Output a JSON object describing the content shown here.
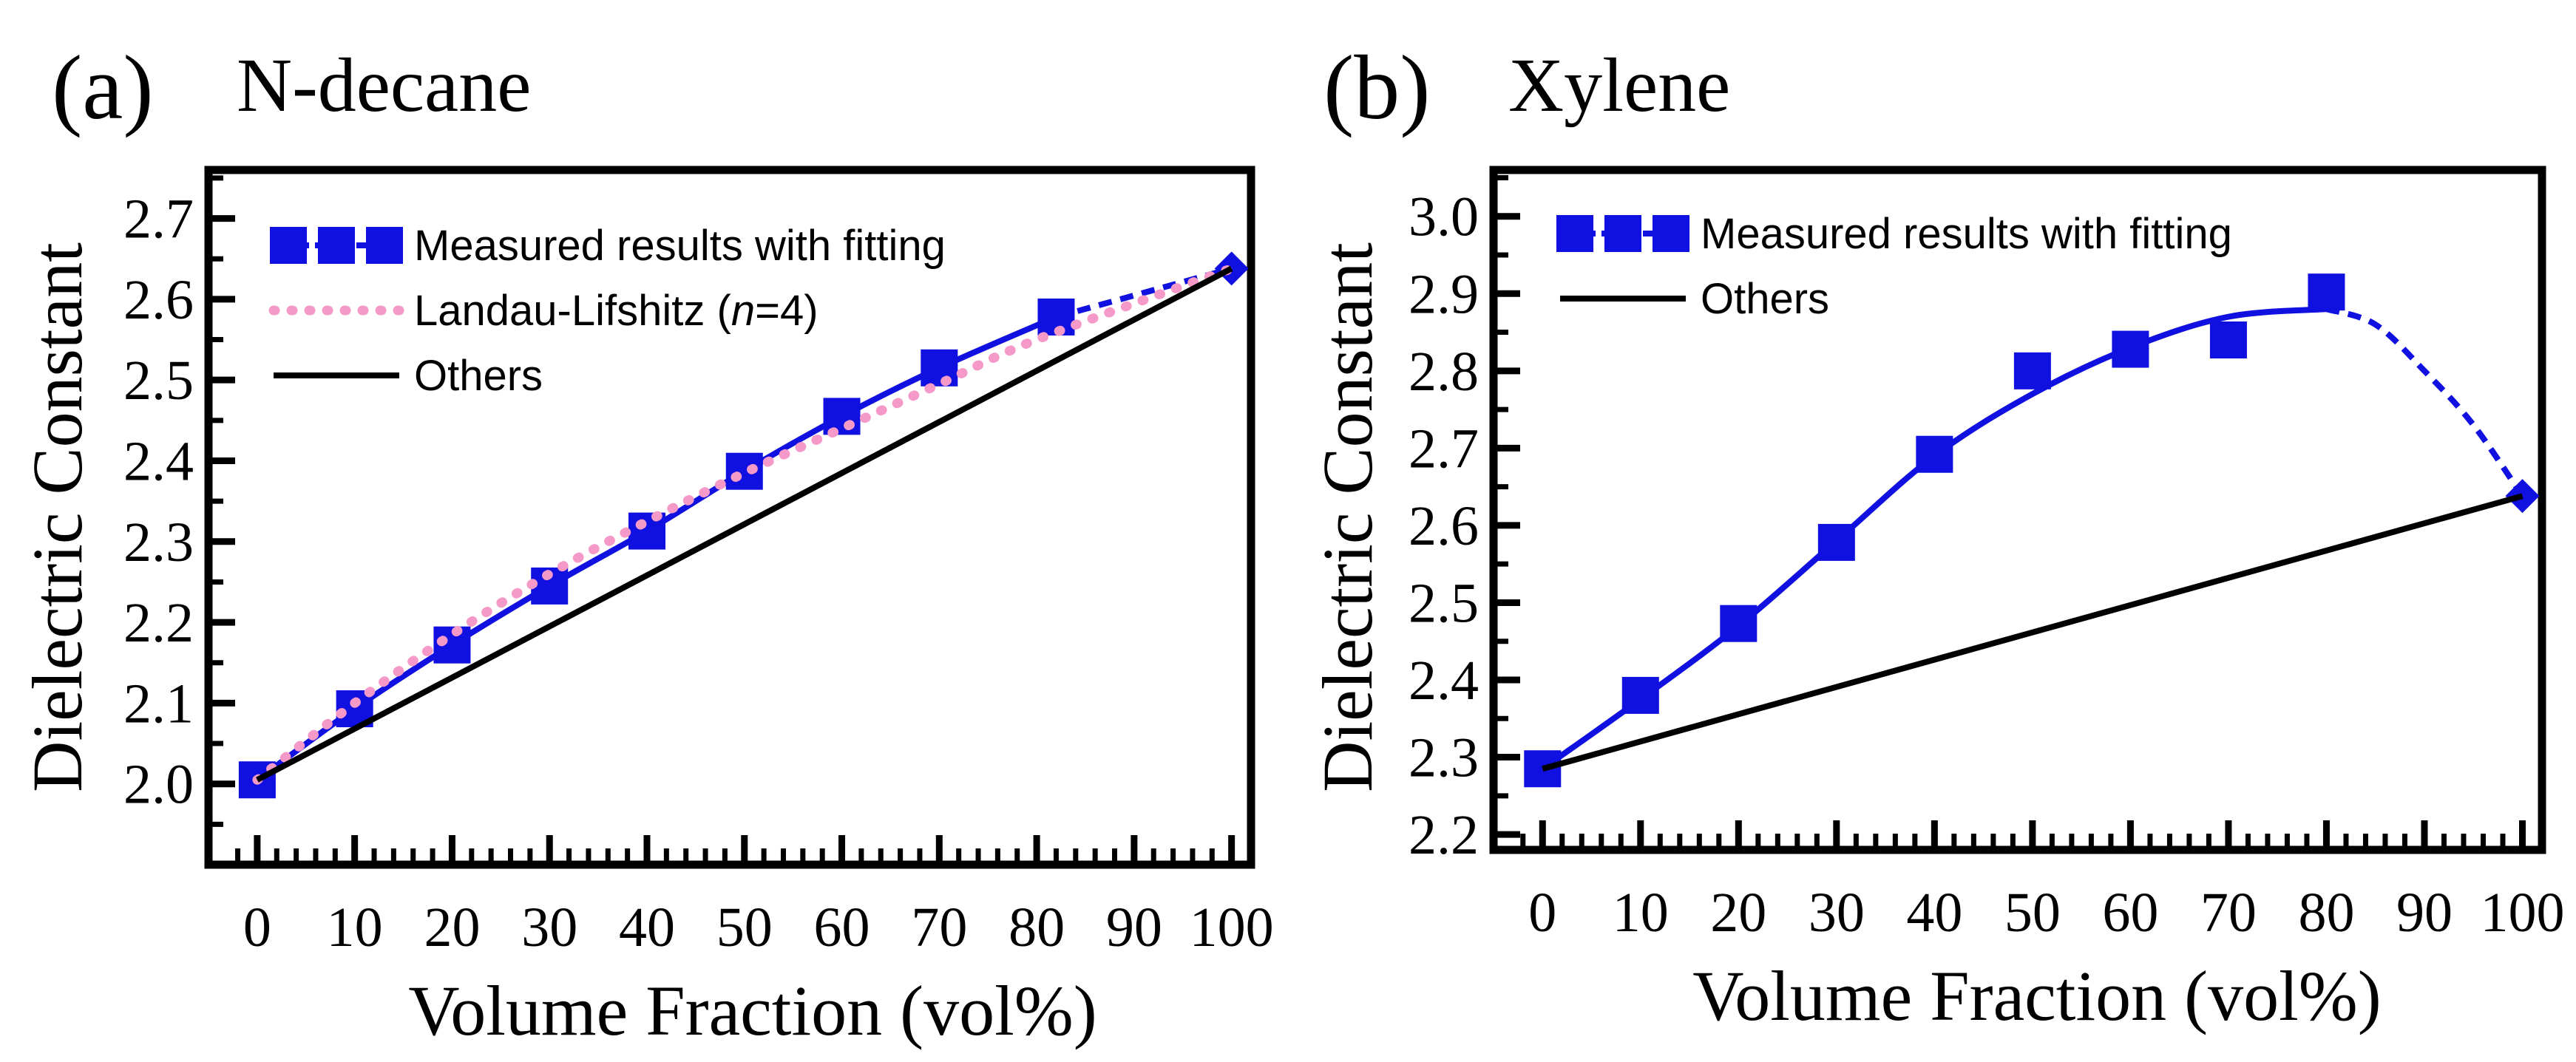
{
  "chart_data": [
    {
      "type": "line",
      "panel_label": "(a)",
      "title": "N-decane",
      "xlabel": "Volume Fraction (vol%)",
      "ylabel": "Dielectric Constant",
      "xlim": [
        -5,
        102
      ],
      "ylim": [
        1.9,
        2.76
      ],
      "xticks": [
        0,
        10,
        20,
        30,
        40,
        50,
        60,
        70,
        80,
        90,
        100
      ],
      "xtick_labels": [
        "0",
        "10",
        "20",
        "30",
        "40",
        "50",
        "60",
        "70",
        "80",
        "90",
        "100"
      ],
      "yticks": [
        2.0,
        2.1,
        2.2,
        2.3,
        2.4,
        2.5,
        2.6,
        2.7
      ],
      "ytick_labels": [
        "2.0",
        "2.1",
        "2.2",
        "2.3",
        "2.4",
        "2.5",
        "2.6",
        "2.7"
      ],
      "grid": false,
      "legend_position": "top-left",
      "legend": [
        {
          "key": "measured",
          "label": "Measured results with fitting"
        },
        {
          "key": "landau",
          "label_prefix": "Landau-Lifshitz (",
          "label_italic": "n",
          "label_suffix": "=4)"
        },
        {
          "key": "others",
          "label": "Others"
        }
      ],
      "series": [
        {
          "key": "measured",
          "style": "squares-solid",
          "color": "#1010e0",
          "x": [
            0,
            10,
            20,
            30,
            40,
            50,
            60,
            70,
            82
          ],
          "y": [
            2.005,
            2.093,
            2.172,
            2.245,
            2.313,
            2.387,
            2.455,
            2.515,
            2.578
          ]
        },
        {
          "key": "measured-extension",
          "style": "dashed",
          "color": "#1010e0",
          "x": [
            82,
            100
          ],
          "y": [
            2.578,
            2.638
          ]
        },
        {
          "key": "pure-endpoint",
          "style": "diamond",
          "color": "#1010e0",
          "x": [
            100
          ],
          "y": [
            2.638
          ]
        },
        {
          "key": "landau",
          "style": "dotted",
          "color": "#f59ac8",
          "x": [
            0,
            10,
            20,
            30,
            40,
            50,
            60,
            70,
            80,
            100
          ],
          "y": [
            2.005,
            2.1,
            2.185,
            2.26,
            2.325,
            2.385,
            2.44,
            2.495,
            2.55,
            2.638
          ]
        },
        {
          "key": "others",
          "style": "solid",
          "color": "#000000",
          "x": [
            0,
            100
          ],
          "y": [
            2.005,
            2.638
          ]
        }
      ]
    },
    {
      "type": "line",
      "panel_label": "(b)",
      "title": "Xylene",
      "xlabel": "Volume Fraction (vol%)",
      "ylabel": "Dielectric Constant",
      "xlim": [
        -5,
        102
      ],
      "ylim": [
        2.18,
        3.06
      ],
      "xticks": [
        0,
        10,
        20,
        30,
        40,
        50,
        60,
        70,
        80,
        90,
        100
      ],
      "xtick_labels": [
        "0",
        "10",
        "20",
        "30",
        "40",
        "50",
        "60",
        "70",
        "80",
        "90",
        "100"
      ],
      "yticks": [
        2.2,
        2.3,
        2.4,
        2.5,
        2.6,
        2.7,
        2.8,
        2.9,
        3.0
      ],
      "ytick_labels": [
        "2.2",
        "2.3",
        "2.4",
        "2.5",
        "2.6",
        "2.7",
        "2.8",
        "2.9",
        "3.0"
      ],
      "grid": false,
      "legend_position": "top-left",
      "legend": [
        {
          "key": "measured",
          "label": "Measured results with fitting"
        },
        {
          "key": "others",
          "label": "Others"
        }
      ],
      "series": [
        {
          "key": "measured-fit",
          "style": "solid",
          "color": "#1010e0",
          "x": [
            0,
            10,
            20,
            30,
            40,
            50,
            60,
            70,
            80
          ],
          "y": [
            2.285,
            2.375,
            2.47,
            2.58,
            2.69,
            2.77,
            2.83,
            2.87,
            2.88
          ]
        },
        {
          "key": "measured",
          "style": "squares",
          "color": "#1010e0",
          "x": [
            0,
            10,
            20,
            30,
            40,
            50,
            60,
            70,
            80
          ],
          "y": [
            2.285,
            2.38,
            2.473,
            2.578,
            2.692,
            2.8,
            2.828,
            2.84,
            2.902
          ]
        },
        {
          "key": "measured-extension",
          "style": "dashed",
          "color": "#1010e0",
          "x": [
            80,
            85,
            90,
            95,
            100
          ],
          "y": [
            2.88,
            2.86,
            2.8,
            2.73,
            2.638
          ]
        },
        {
          "key": "pure-endpoint",
          "style": "diamond",
          "color": "#1010e0",
          "x": [
            100
          ],
          "y": [
            2.638
          ]
        },
        {
          "key": "others",
          "style": "solid",
          "color": "#000000",
          "x": [
            0,
            100
          ],
          "y": [
            2.285,
            2.638
          ]
        }
      ]
    }
  ]
}
